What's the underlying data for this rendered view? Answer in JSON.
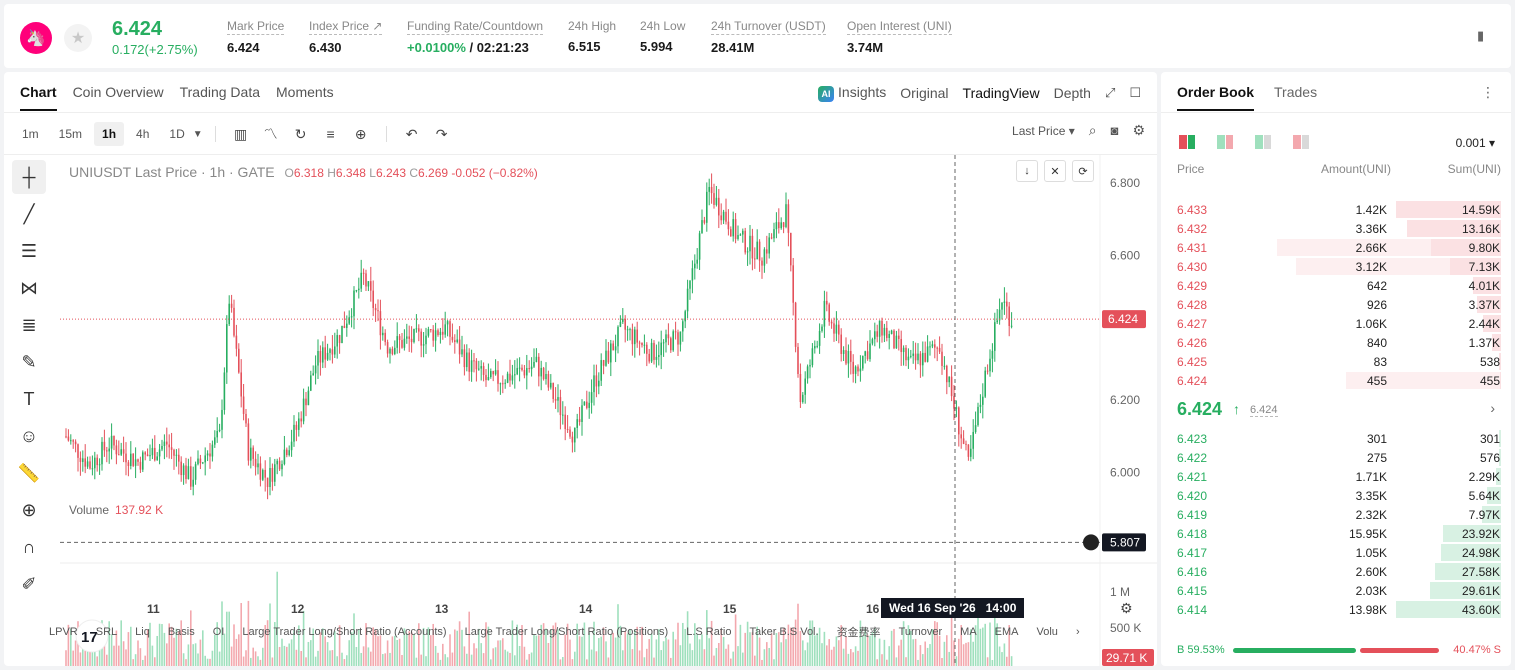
{
  "header": {
    "last_price": "6.424",
    "change": "0.172(+2.75%)",
    "stats": [
      {
        "label": "Mark Price",
        "value": "6.424"
      },
      {
        "label": "Index Price ↗",
        "value": "6.430"
      },
      {
        "label": "Funding Rate/Countdown",
        "value_green": "+0.0100%",
        "value": " / 02:21:23"
      },
      {
        "label": "24h High",
        "value": "6.515"
      },
      {
        "label": "24h Low",
        "value": "5.994"
      },
      {
        "label": "24h Turnover (USDT)",
        "value": "28.41M"
      },
      {
        "label": "Open Interest (UNI)",
        "value": "3.74M"
      }
    ]
  },
  "chart_tabs": [
    "Chart",
    "Coin Overview",
    "Trading Data",
    "Moments"
  ],
  "view_tabs": {
    "insights": "Insights",
    "original": "Original",
    "tradingview": "TradingView",
    "depth": "Depth",
    "ai_badge": "AI"
  },
  "timeframes": [
    "1m",
    "15m",
    "1h",
    "4h",
    "1D"
  ],
  "price_type": "Last Price",
  "legend": {
    "symbol": "UNIUSDT Last Price · 1h · GATE",
    "o_label": "O",
    "o": "6.318",
    "h_label": "H",
    "h": "6.348",
    "l_label": "L",
    "l": "6.243",
    "c_label": "C",
    "c": "6.269",
    "chg": "-0.052 (−0.82%)"
  },
  "volume_legend": {
    "label": "Volume",
    "value": "137.92 K"
  },
  "chart_data": {
    "type": "candlestick",
    "price_axis": [
      "6.800",
      "6.600",
      "6.200",
      "6.000"
    ],
    "volume_axis": [
      "1 M",
      "500 K"
    ],
    "x_ticks": [
      "11",
      "12",
      "13",
      "14",
      "15",
      "16"
    ],
    "last_price_tag": "6.424",
    "crosshair_price": "5.807",
    "volume_tag": "29.71 K",
    "crosshair_time": "Wed 16 Sep '26",
    "crosshair_hour": "14:00",
    "ylim": [
      5.75,
      6.85
    ]
  },
  "indicators": [
    "LPVR",
    "SRL",
    "Liq",
    "Basis",
    "OI",
    "Large Trader Long/Short Ratio (Accounts)",
    "Large Trader Long/Short Ratio (Positions)",
    "L.S Ratio",
    "Taker B.S Vol.",
    "资金费率",
    "Turnover",
    "MA",
    "EMA",
    "Volu"
  ],
  "orderbook": {
    "tabs": [
      "Order Book",
      "Trades"
    ],
    "precision": "0.001",
    "headers": {
      "price": "Price",
      "amount": "Amount(UNI)",
      "sum": "Sum(UNI)"
    },
    "asks": [
      {
        "price": "6.433",
        "amount": "1.42K",
        "sum": "14.59K",
        "amt_pct": 0.0,
        "sum_pct": 1.0
      },
      {
        "price": "6.432",
        "amount": "3.36K",
        "sum": "13.16K",
        "amt_pct": 0.0,
        "sum_pct": 0.9
      },
      {
        "price": "6.431",
        "amount": "2.66K",
        "sum": "9.80K",
        "amt_pct": 0.7,
        "sum_pct": 0.67
      },
      {
        "price": "6.430",
        "amount": "3.12K",
        "sum": "7.13K",
        "amt_pct": 0.7,
        "sum_pct": 0.49
      },
      {
        "price": "6.429",
        "amount": "642",
        "sum": "4.01K",
        "amt_pct": 0.0,
        "sum_pct": 0.27
      },
      {
        "price": "6.428",
        "amount": "926",
        "sum": "3.37K",
        "amt_pct": 0.0,
        "sum_pct": 0.23
      },
      {
        "price": "6.427",
        "amount": "1.06K",
        "sum": "2.44K",
        "amt_pct": 0.0,
        "sum_pct": 0.17
      },
      {
        "price": "6.426",
        "amount": "840",
        "sum": "1.37K",
        "amt_pct": 0.0,
        "sum_pct": 0.09
      },
      {
        "price": "6.425",
        "amount": "83",
        "sum": "538",
        "amt_pct": 0.0,
        "sum_pct": 0.02
      },
      {
        "price": "6.424",
        "amount": "455",
        "sum": "455",
        "amt_pct": 0.7,
        "sum_pct": 0.01
      }
    ],
    "mid": {
      "price": "6.424",
      "mark": "6.424"
    },
    "bids": [
      {
        "price": "6.423",
        "amount": "301",
        "sum": "301",
        "sum_pct": 0.01
      },
      {
        "price": "6.422",
        "amount": "275",
        "sum": "576",
        "sum_pct": 0.01
      },
      {
        "price": "6.421",
        "amount": "1.71K",
        "sum": "2.29K",
        "sum_pct": 0.05
      },
      {
        "price": "6.420",
        "amount": "3.35K",
        "sum": "5.64K",
        "sum_pct": 0.13
      },
      {
        "price": "6.419",
        "amount": "2.32K",
        "sum": "7.97K",
        "sum_pct": 0.18
      },
      {
        "price": "6.418",
        "amount": "15.95K",
        "sum": "23.92K",
        "sum_pct": 0.55
      },
      {
        "price": "6.417",
        "amount": "1.05K",
        "sum": "24.98K",
        "sum_pct": 0.57
      },
      {
        "price": "6.416",
        "amount": "2.60K",
        "sum": "27.58K",
        "sum_pct": 0.63
      },
      {
        "price": "6.415",
        "amount": "2.03K",
        "sum": "29.61K",
        "sum_pct": 0.68
      },
      {
        "price": "6.414",
        "amount": "13.98K",
        "sum": "43.60K",
        "sum_pct": 1.0
      }
    ],
    "buy_label": "B 59.53%",
    "sell_label": "40.47% S",
    "buy_ratio": 0.5953
  },
  "colors": {
    "up": "#27ae60",
    "down": "#e4505a",
    "up_light": "#9fe0bd",
    "down_light": "#f3a8ae"
  }
}
